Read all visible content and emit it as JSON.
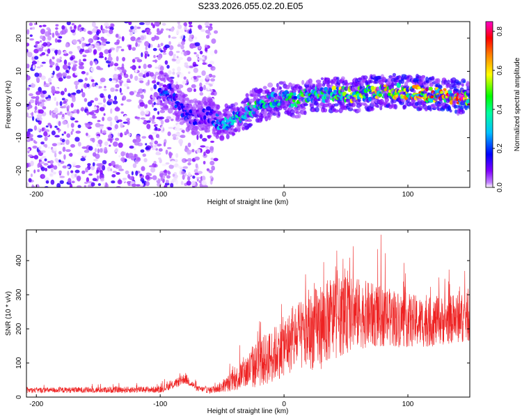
{
  "title": "S233.2026.055.02.20.E05",
  "chart_data": [
    {
      "type": "heatmap",
      "name": "spectrogram",
      "xlabel": "Height of straight line (km)",
      "ylabel": "Frequency (Hz)",
      "xlim": [
        -208,
        150
      ],
      "ylim": [
        -25,
        25
      ],
      "xticks": [
        -200,
        -100,
        0,
        100
      ],
      "xtick_labels": [
        "-200",
        "-100",
        "0",
        "100"
      ],
      "yticks": [
        -20,
        -10,
        0,
        10,
        20
      ],
      "ytick_labels": [
        "-20",
        "-10",
        "0",
        "10",
        "20"
      ],
      "colorbar": {
        "label": "Normalized spectral amplitude",
        "range": [
          0,
          0.85
        ],
        "ticks": [
          0.0,
          0.2,
          0.4,
          0.6,
          0.8
        ],
        "tick_labels": [
          "0.0",
          "0.2",
          "0.4",
          "0.6",
          "0.8"
        ],
        "colormap": [
          "#ffffff",
          "#8000ff",
          "#0000ff",
          "#00ffff",
          "#00ff00",
          "#ffff00",
          "#ff8000",
          "#ff0000",
          "#ff00c0"
        ]
      },
      "ridge": {
        "x": [
          -100,
          -90,
          -80,
          -70,
          -60,
          -50,
          -40,
          -30,
          -20,
          -10,
          0,
          10,
          20,
          40,
          60,
          80,
          100,
          120,
          150
        ],
        "frequency": [
          5,
          3,
          -3,
          -4,
          -3,
          -6,
          -4,
          -2,
          0,
          1,
          2,
          1,
          3,
          3,
          3,
          4,
          4,
          3,
          2
        ],
        "amplitude": [
          0.2,
          0.2,
          0.18,
          0.15,
          0.18,
          0.3,
          0.35,
          0.4,
          0.4,
          0.38,
          0.4,
          0.42,
          0.45,
          0.48,
          0.5,
          0.55,
          0.6,
          0.65,
          0.8
        ]
      },
      "noise_region": {
        "x_range": [
          -208,
          -55
        ],
        "amplitude": 0.15
      }
    },
    {
      "type": "line",
      "name": "snr",
      "xlabel": "Height of straight line (km)",
      "ylabel": "SNR (10 * v/v)",
      "xlim": [
        -208,
        150
      ],
      "ylim": [
        0,
        490
      ],
      "xticks": [
        -200,
        -100,
        0,
        100
      ],
      "xtick_labels": [
        "-200",
        "-100",
        "0",
        "100"
      ],
      "yticks": [
        0,
        100,
        200,
        300,
        400
      ],
      "ytick_labels": [
        "0",
        "100",
        "200",
        "300",
        "400"
      ],
      "color": "#ee2222",
      "envelope": {
        "x": [
          -208,
          -100,
          -90,
          -80,
          -75,
          -70,
          -60,
          -50,
          -40,
          -30,
          -20,
          -10,
          0,
          10,
          20,
          30,
          40,
          50,
          60,
          70,
          80,
          90,
          100,
          110,
          120,
          130,
          140,
          150
        ],
        "mean": [
          20,
          22,
          35,
          55,
          40,
          25,
          20,
          30,
          50,
          75,
          100,
          120,
          150,
          170,
          190,
          210,
          230,
          240,
          245,
          240,
          235,
          230,
          225,
          220,
          220,
          225,
          230,
          235
        ],
        "spread": [
          10,
          12,
          15,
          20,
          15,
          10,
          12,
          20,
          40,
          70,
          90,
          100,
          110,
          120,
          140,
          160,
          150,
          140,
          130,
          120,
          110,
          105,
          100,
          95,
          90,
          90,
          90,
          90
        ]
      },
      "peak_max": 480
    }
  ]
}
